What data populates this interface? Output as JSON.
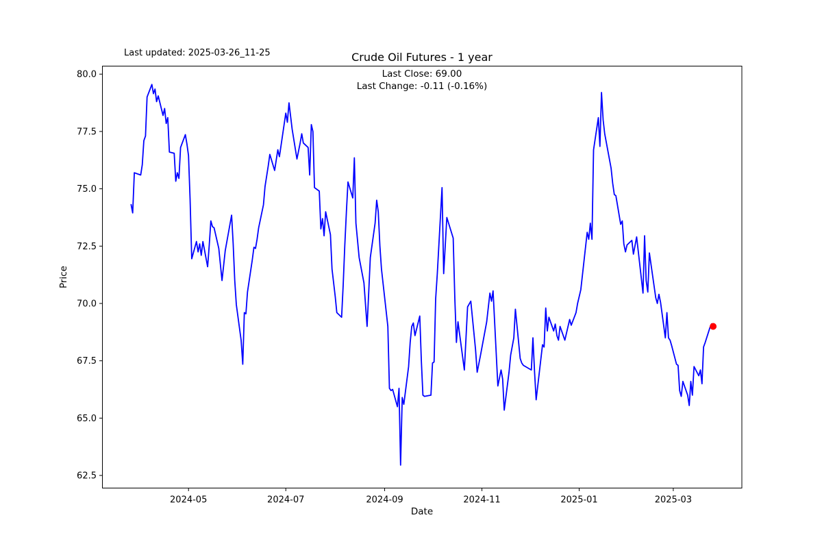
{
  "header": {
    "last_updated": "Last updated: 2025-03-26_11-25",
    "title": "Crude Oil Futures - 1 year",
    "annotation_line1": "Last Close: 69.00",
    "annotation_line2": "Last Change: -0.11 (-0.16%)"
  },
  "chart_data": {
    "type": "line",
    "title": "Crude Oil Futures - 1 year",
    "xlabel": "Date",
    "ylabel": "Price",
    "legend": "none",
    "grid": false,
    "line_color": "#0000ff",
    "marker_color": "#ff0000",
    "axis_color": "#000000",
    "background_color": "#ffffff",
    "last_close": 69.0,
    "last_change": "-0.11 (-0.16%)",
    "ylim": [
      61.95,
      80.35
    ],
    "xlim_dates": [
      "2024-03-08",
      "2025-04-13"
    ],
    "y_ticks": [
      62.5,
      65.0,
      67.5,
      70.0,
      72.5,
      75.0,
      77.5,
      80.0
    ],
    "y_tick_labels": [
      "62.5",
      "65.0",
      "67.5",
      "70.0",
      "72.5",
      "75.0",
      "77.5",
      "80.0"
    ],
    "x_tick_dates": [
      "2024-05-01",
      "2024-07-01",
      "2024-09-01",
      "2024-11-01",
      "2025-01-01",
      "2025-03-01"
    ],
    "x_tick_labels": [
      "2024-05",
      "2024-07",
      "2024-09",
      "2024-11",
      "2025-01",
      "2025-03"
    ],
    "series": [
      {
        "name": "price",
        "points": [
          [
            "2024-03-26",
            74.31
          ],
          [
            "2024-03-27",
            73.95
          ],
          [
            "2024-03-28",
            75.7
          ],
          [
            "2024-04-01",
            75.6
          ],
          [
            "2024-04-02",
            76.05
          ],
          [
            "2024-04-03",
            77.1
          ],
          [
            "2024-04-04",
            77.3
          ],
          [
            "2024-04-05",
            79.0
          ],
          [
            "2024-04-08",
            79.55
          ],
          [
            "2024-04-09",
            79.15
          ],
          [
            "2024-04-10",
            79.35
          ],
          [
            "2024-04-11",
            78.8
          ],
          [
            "2024-04-12",
            79.05
          ],
          [
            "2024-04-15",
            78.2
          ],
          [
            "2024-04-16",
            78.5
          ],
          [
            "2024-04-17",
            77.85
          ],
          [
            "2024-04-18",
            78.1
          ],
          [
            "2024-04-19",
            76.6
          ],
          [
            "2024-04-22",
            76.55
          ],
          [
            "2024-04-23",
            75.33
          ],
          [
            "2024-04-24",
            75.7
          ],
          [
            "2024-04-25",
            75.45
          ],
          [
            "2024-04-26",
            76.8
          ],
          [
            "2024-04-29",
            77.36
          ],
          [
            "2024-04-30",
            76.95
          ],
          [
            "2024-05-01",
            76.45
          ],
          [
            "2024-05-02",
            74.55
          ],
          [
            "2024-05-03",
            71.95
          ],
          [
            "2024-05-06",
            72.7
          ],
          [
            "2024-05-07",
            72.25
          ],
          [
            "2024-05-08",
            72.6
          ],
          [
            "2024-05-09",
            72.1
          ],
          [
            "2024-05-10",
            72.7
          ],
          [
            "2024-05-13",
            71.6
          ],
          [
            "2024-05-14",
            72.55
          ],
          [
            "2024-05-15",
            73.6
          ],
          [
            "2024-05-16",
            73.35
          ],
          [
            "2024-05-17",
            73.3
          ],
          [
            "2024-05-20",
            72.4
          ],
          [
            "2024-05-22",
            71.0
          ],
          [
            "2024-05-24",
            72.3
          ],
          [
            "2024-05-28",
            73.85
          ],
          [
            "2024-05-29",
            72.6
          ],
          [
            "2024-05-30",
            71.0
          ],
          [
            "2024-05-31",
            69.95
          ],
          [
            "2024-06-03",
            68.4
          ],
          [
            "2024-06-04",
            67.35
          ],
          [
            "2024-06-05",
            69.6
          ],
          [
            "2024-06-06",
            69.55
          ],
          [
            "2024-06-07",
            70.5
          ],
          [
            "2024-06-10",
            71.9
          ],
          [
            "2024-06-11",
            72.45
          ],
          [
            "2024-06-12",
            72.4
          ],
          [
            "2024-06-13",
            72.8
          ],
          [
            "2024-06-14",
            73.3
          ],
          [
            "2024-06-17",
            74.3
          ],
          [
            "2024-06-18",
            75.1
          ],
          [
            "2024-06-20",
            76.0
          ],
          [
            "2024-06-21",
            76.5
          ],
          [
            "2024-06-24",
            75.8
          ],
          [
            "2024-06-26",
            76.7
          ],
          [
            "2024-06-27",
            76.4
          ],
          [
            "2024-07-01",
            78.3
          ],
          [
            "2024-07-02",
            77.9
          ],
          [
            "2024-07-03",
            78.75
          ],
          [
            "2024-07-05",
            77.6
          ],
          [
            "2024-07-08",
            76.3
          ],
          [
            "2024-07-10",
            77.0
          ],
          [
            "2024-07-11",
            77.4
          ],
          [
            "2024-07-12",
            77.0
          ],
          [
            "2024-07-15",
            76.8
          ],
          [
            "2024-07-16",
            75.6
          ],
          [
            "2024-07-17",
            77.8
          ],
          [
            "2024-07-18",
            77.5
          ],
          [
            "2024-07-19",
            75.05
          ],
          [
            "2024-07-22",
            74.9
          ],
          [
            "2024-07-23",
            73.25
          ],
          [
            "2024-07-24",
            73.7
          ],
          [
            "2024-07-25",
            72.95
          ],
          [
            "2024-07-26",
            74.0
          ],
          [
            "2024-07-29",
            73.0
          ],
          [
            "2024-07-30",
            71.5
          ],
          [
            "2024-08-01",
            70.3
          ],
          [
            "2024-08-02",
            69.6
          ],
          [
            "2024-08-05",
            69.4
          ],
          [
            "2024-08-06",
            70.8
          ],
          [
            "2024-08-07",
            72.5
          ],
          [
            "2024-08-08",
            74.0
          ],
          [
            "2024-08-09",
            75.3
          ],
          [
            "2024-08-12",
            74.6
          ],
          [
            "2024-08-13",
            76.35
          ],
          [
            "2024-08-14",
            73.5
          ],
          [
            "2024-08-16",
            72.0
          ],
          [
            "2024-08-19",
            70.9
          ],
          [
            "2024-08-21",
            69.0
          ],
          [
            "2024-08-22",
            70.5
          ],
          [
            "2024-08-23",
            72.0
          ],
          [
            "2024-08-26",
            73.5
          ],
          [
            "2024-08-27",
            74.5
          ],
          [
            "2024-08-28",
            74.0
          ],
          [
            "2024-08-29",
            72.5
          ],
          [
            "2024-08-30",
            71.5
          ],
          [
            "2024-09-03",
            69.0
          ],
          [
            "2024-09-04",
            66.3
          ],
          [
            "2024-09-05",
            66.2
          ],
          [
            "2024-09-06",
            66.25
          ],
          [
            "2024-09-09",
            65.5
          ],
          [
            "2024-09-10",
            66.3
          ],
          [
            "2024-09-11",
            62.95
          ],
          [
            "2024-09-12",
            65.9
          ],
          [
            "2024-09-13",
            65.6
          ],
          [
            "2024-09-16",
            67.25
          ],
          [
            "2024-09-17",
            68.3
          ],
          [
            "2024-09-18",
            69.0
          ],
          [
            "2024-09-19",
            69.15
          ],
          [
            "2024-09-20",
            68.6
          ],
          [
            "2024-09-23",
            69.45
          ],
          [
            "2024-09-24",
            67.5
          ],
          [
            "2024-09-25",
            66.0
          ],
          [
            "2024-09-26",
            65.95
          ],
          [
            "2024-09-30",
            66.0
          ],
          [
            "2024-10-01",
            67.4
          ],
          [
            "2024-10-02",
            67.45
          ],
          [
            "2024-10-03",
            70.2
          ],
          [
            "2024-10-04",
            71.3
          ],
          [
            "2024-10-07",
            75.05
          ],
          [
            "2024-10-08",
            71.3
          ],
          [
            "2024-10-10",
            73.75
          ],
          [
            "2024-10-14",
            72.85
          ],
          [
            "2024-10-15",
            70.2
          ],
          [
            "2024-10-16",
            68.3
          ],
          [
            "2024-10-17",
            69.2
          ],
          [
            "2024-10-21",
            67.1
          ],
          [
            "2024-10-22",
            68.5
          ],
          [
            "2024-10-23",
            69.85
          ],
          [
            "2024-10-25",
            70.1
          ],
          [
            "2024-10-28",
            68.0
          ],
          [
            "2024-10-29",
            67.0
          ],
          [
            "2024-10-31",
            67.7
          ],
          [
            "2024-11-04",
            69.2
          ],
          [
            "2024-11-06",
            70.45
          ],
          [
            "2024-11-07",
            70.1
          ],
          [
            "2024-11-08",
            70.55
          ],
          [
            "2024-11-11",
            66.4
          ],
          [
            "2024-11-13",
            67.1
          ],
          [
            "2024-11-14",
            66.7
          ],
          [
            "2024-11-15",
            65.35
          ],
          [
            "2024-11-18",
            67.0
          ],
          [
            "2024-11-19",
            67.75
          ],
          [
            "2024-11-21",
            68.5
          ],
          [
            "2024-11-22",
            69.75
          ],
          [
            "2024-11-25",
            67.6
          ],
          [
            "2024-11-26",
            67.4
          ],
          [
            "2024-11-27",
            67.3
          ],
          [
            "2024-12-02",
            67.1
          ],
          [
            "2024-12-03",
            68.5
          ],
          [
            "2024-12-04",
            67.0
          ],
          [
            "2024-12-05",
            65.8
          ],
          [
            "2024-12-09",
            68.2
          ],
          [
            "2024-12-10",
            68.1
          ],
          [
            "2024-12-11",
            69.8
          ],
          [
            "2024-12-12",
            68.8
          ],
          [
            "2024-12-13",
            69.4
          ],
          [
            "2024-12-16",
            68.8
          ],
          [
            "2024-12-17",
            69.1
          ],
          [
            "2024-12-18",
            68.6
          ],
          [
            "2024-12-19",
            68.4
          ],
          [
            "2024-12-20",
            69.0
          ],
          [
            "2024-12-23",
            68.4
          ],
          [
            "2024-12-26",
            69.3
          ],
          [
            "2024-12-27",
            69.05
          ],
          [
            "2024-12-30",
            69.6
          ],
          [
            "2024-12-31",
            70.0
          ],
          [
            "2025-01-02",
            70.6
          ],
          [
            "2025-01-06",
            73.1
          ],
          [
            "2025-01-07",
            72.8
          ],
          [
            "2025-01-08",
            73.5
          ],
          [
            "2025-01-09",
            72.8
          ],
          [
            "2025-01-10",
            76.7
          ],
          [
            "2025-01-13",
            78.1
          ],
          [
            "2025-01-14",
            76.85
          ],
          [
            "2025-01-15",
            79.2
          ],
          [
            "2025-01-16",
            78.0
          ],
          [
            "2025-01-17",
            77.4
          ],
          [
            "2025-01-21",
            75.9
          ],
          [
            "2025-01-22",
            75.25
          ],
          [
            "2025-01-23",
            74.75
          ],
          [
            "2025-01-24",
            74.7
          ],
          [
            "2025-01-27",
            73.45
          ],
          [
            "2025-01-28",
            73.6
          ],
          [
            "2025-01-29",
            72.6
          ],
          [
            "2025-01-30",
            72.25
          ],
          [
            "2025-01-31",
            72.55
          ],
          [
            "2025-02-03",
            72.75
          ],
          [
            "2025-02-04",
            72.15
          ],
          [
            "2025-02-06",
            72.9
          ],
          [
            "2025-02-10",
            70.45
          ],
          [
            "2025-02-11",
            72.95
          ],
          [
            "2025-02-12",
            71.0
          ],
          [
            "2025-02-13",
            70.5
          ],
          [
            "2025-02-14",
            72.2
          ],
          [
            "2025-02-18",
            70.25
          ],
          [
            "2025-02-19",
            70.0
          ],
          [
            "2025-02-20",
            70.4
          ],
          [
            "2025-02-21",
            70.05
          ],
          [
            "2025-02-24",
            68.5
          ],
          [
            "2025-02-25",
            69.6
          ],
          [
            "2025-02-26",
            68.5
          ],
          [
            "2025-02-27",
            68.4
          ],
          [
            "2025-02-28",
            68.15
          ],
          [
            "2025-03-03",
            67.35
          ],
          [
            "2025-03-04",
            67.3
          ],
          [
            "2025-03-05",
            66.2
          ],
          [
            "2025-03-06",
            65.95
          ],
          [
            "2025-03-07",
            66.6
          ],
          [
            "2025-03-10",
            66.0
          ],
          [
            "2025-03-11",
            65.55
          ],
          [
            "2025-03-12",
            66.6
          ],
          [
            "2025-03-13",
            66.0
          ],
          [
            "2025-03-14",
            67.25
          ],
          [
            "2025-03-17",
            66.85
          ],
          [
            "2025-03-18",
            67.1
          ],
          [
            "2025-03-19",
            66.5
          ],
          [
            "2025-03-20",
            68.1
          ],
          [
            "2025-03-21",
            68.3
          ],
          [
            "2025-03-24",
            68.95
          ],
          [
            "2025-03-25",
            69.11
          ],
          [
            "2025-03-26",
            69.0
          ]
        ]
      }
    ]
  }
}
